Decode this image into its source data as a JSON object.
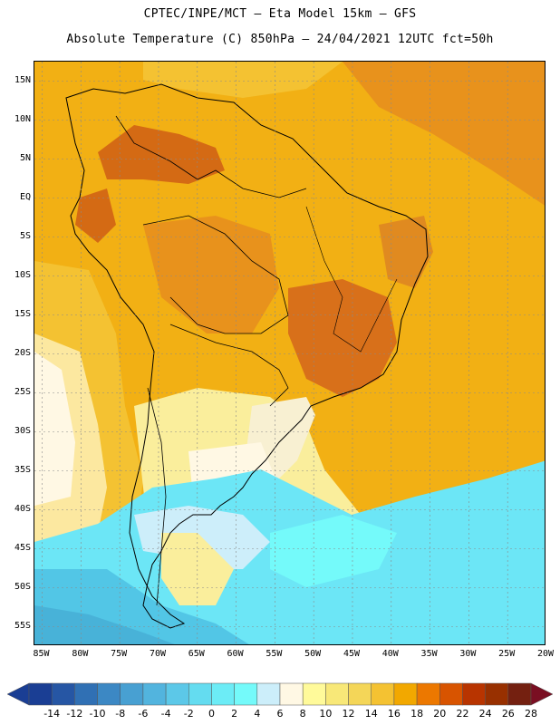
{
  "header": {
    "line1": "CPTEC/INPE/MCT –  Eta Model 15km – GFS",
    "line2": "Absolute Temperature (C) 850hPa – 24/04/2021 12UTC fct=50h"
  },
  "axes": {
    "lat_labels": [
      "15N",
      "10N",
      "5N",
      "EQ",
      "5S",
      "10S",
      "15S",
      "20S",
      "25S",
      "30S",
      "35S",
      "40S",
      "45S",
      "50S",
      "55S"
    ],
    "lat_values": [
      15,
      10,
      5,
      0,
      -5,
      -10,
      -15,
      -20,
      -25,
      -30,
      -35,
      -40,
      -45,
      -50,
      -55
    ],
    "lon_labels": [
      "85W",
      "80W",
      "75W",
      "70W",
      "65W",
      "60W",
      "55W",
      "50W",
      "45W",
      "40W",
      "35W",
      "30W",
      "25W",
      "20W"
    ],
    "lon_values": [
      -85,
      -80,
      -75,
      -70,
      -65,
      -60,
      -55,
      -50,
      -45,
      -40,
      -35,
      -30,
      -25,
      -20
    ],
    "lat_range": [
      -57.5,
      17.5
    ],
    "lon_range": [
      -86,
      -20
    ]
  },
  "legend": {
    "labels": [
      "-14",
      "-12",
      "-10",
      "-8",
      "-6",
      "-4",
      "-2",
      "0",
      "2",
      "4",
      "6",
      "8",
      "10",
      "12",
      "14",
      "16",
      "18",
      "20",
      "22",
      "24",
      "26",
      "28"
    ],
    "colors": [
      "#1a3e94",
      "#2656a4",
      "#3070b4",
      "#3c88c4",
      "#48a0d2",
      "#52b4de",
      "#5cc8e8",
      "#64dcf0",
      "#6cecf6",
      "#74fafa",
      "#cceefa",
      "#fff8e4",
      "#fffa9a",
      "#f8e878",
      "#f4d658",
      "#f4c232",
      "#f2a800",
      "#ec7800",
      "#d85400",
      "#b83400",
      "#983000",
      "#742010"
    ]
  },
  "map_layers": {
    "background_color": "#f2b014",
    "land_fill": "#efa81a",
    "regions": [
      {
        "name": "warm-north-ocean",
        "color": "#e8921c"
      },
      {
        "name": "hot-venezuela",
        "color": "#d46a14"
      },
      {
        "name": "hot-central-brazil",
        "color": "#d8701a"
      },
      {
        "name": "hot-northeast-brazil",
        "color": "#e08a20"
      },
      {
        "name": "cool-uruguay",
        "color": "#f8f0d2"
      },
      {
        "name": "pale-yellow-pampas",
        "color": "#faee9c"
      },
      {
        "name": "cold-south-atlantic",
        "color": "#6ce6f6"
      },
      {
        "name": "colder-southwest",
        "color": "#52c6e6"
      },
      {
        "name": "coldest-deep-south",
        "color": "#48b2d8"
      },
      {
        "name": "very-pale-patagonia",
        "color": "#cdeefa"
      }
    ]
  }
}
